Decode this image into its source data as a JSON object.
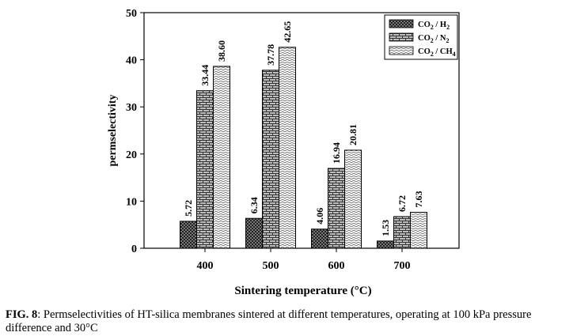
{
  "chart_data": {
    "type": "bar",
    "title": "",
    "xlabel": "Sintering temperature (°C)",
    "ylabel": "permselectivity",
    "categories": [
      "400",
      "500",
      "600",
      "700"
    ],
    "ylim": [
      0,
      50
    ],
    "yticks": [
      0,
      10,
      20,
      30,
      40,
      50
    ],
    "grid": false,
    "legend_position": "top-right",
    "series": [
      {
        "name": "CO2 / H2",
        "legend_html": "CO<sub>2</sub> / H<sub>2</sub>",
        "pattern": "checker",
        "values": [
          5.72,
          6.34,
          4.06,
          1.53
        ],
        "labels": [
          "5.72",
          "6.34",
          "4.06",
          "1.53"
        ]
      },
      {
        "name": "CO2 / N2",
        "legend_html": "CO<sub>2</sub> / N<sub>2</sub>",
        "pattern": "brick",
        "values": [
          33.44,
          37.78,
          16.94,
          6.72
        ],
        "labels": [
          "33.44",
          "37.78",
          "16.94",
          "6.72"
        ]
      },
      {
        "name": "CO2 / CH4",
        "legend_html": "CO<sub>2</sub> / CH<sub>4</sub>",
        "pattern": "wave",
        "values": [
          38.6,
          42.65,
          20.81,
          7.63
        ],
        "labels": [
          "38.60",
          "42.65",
          "20.81",
          "7.63"
        ]
      }
    ]
  },
  "caption": {
    "fig_label": "FIG. 8",
    "text": ": Permselectivities of HT-silica membranes sintered at different temperatures, operating at 100 kPa pressure difference and 30°C"
  }
}
